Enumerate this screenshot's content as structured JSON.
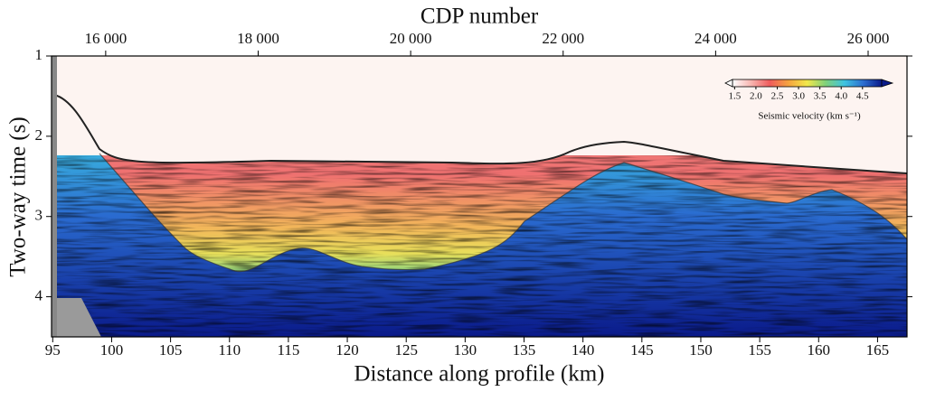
{
  "chart_data": {
    "type": "image",
    "title": "CDP number",
    "x_label": "Distance along profile (km)",
    "y_label": "Two-way time (s)",
    "xlim": [
      94.9,
      167.5
    ],
    "xticks": [
      95,
      100,
      105,
      110,
      115,
      120,
      125,
      130,
      135,
      140,
      145,
      150,
      155,
      160,
      165
    ],
    "x2lim": [
      15290,
      26510
    ],
    "x2ticks": [
      {
        "value": 16000,
        "label": "16 000"
      },
      {
        "value": 18000,
        "label": "18 000"
      },
      {
        "value": 20000,
        "label": "20 000"
      },
      {
        "value": 22000,
        "label": "22 000"
      },
      {
        "value": 24000,
        "label": "24 000"
      },
      {
        "value": 26000,
        "label": "26 000"
      }
    ],
    "ylim": [
      1,
      4.5
    ],
    "yticks": [
      1,
      2,
      3,
      4
    ],
    "y_inverted": true,
    "colorbar": {
      "label": "Seismic velocity (km s⁻¹)",
      "lim": [
        1.45,
        4.95
      ],
      "ticks": [
        1.5,
        {
          "value": 2,
          "label": "2.0"
        },
        2.5,
        {
          "value": 3,
          "label": "3.0"
        },
        3.5,
        {
          "value": 4,
          "label": "4.0"
        },
        4.5
      ],
      "colors": [
        "#ffffff",
        "#f7b5b0",
        "#ef5c5c",
        "#f5a340",
        "#f2e84a",
        "#7fd07a",
        "#3fc3e0",
        "#2d6fd0",
        "#0a1a8a"
      ]
    }
  }
}
